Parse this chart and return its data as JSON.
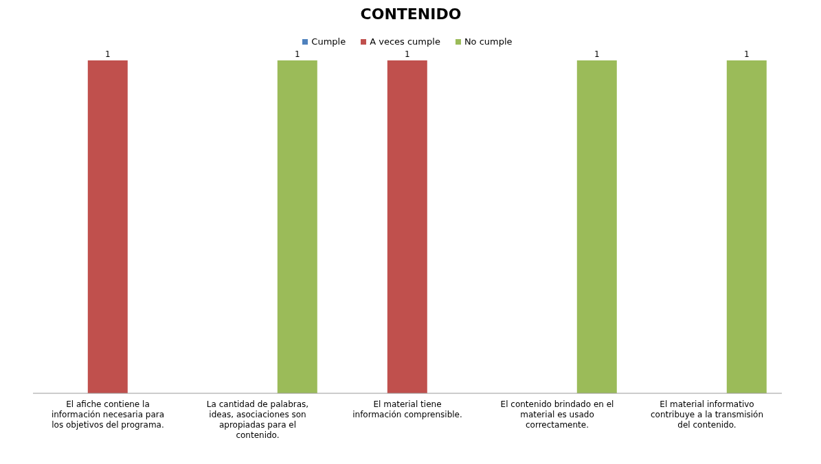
{
  "chart_data": {
    "type": "bar",
    "title": "CONTENIDO",
    "categories": [
      "El afiche contiene la información necesaria para los objetivos del programa.",
      "La cantidad de palabras, ideas, asociaciones son apropiadas para el contenido.",
      "El material tiene información comprensible.",
      "El contenido brindado en el material es usado correctamente.",
      "El material informativo contribuye a la transmisión del contenido."
    ],
    "series": [
      {
        "name": "Cumple",
        "color": "#4f81bd",
        "values": [
          null,
          null,
          null,
          null,
          null
        ]
      },
      {
        "name": "A veces cumple",
        "color": "#c0504d",
        "values": [
          1,
          null,
          1,
          null,
          null
        ]
      },
      {
        "name": "No cumple",
        "color": "#9bbb59",
        "values": [
          null,
          1,
          null,
          1,
          1
        ]
      }
    ],
    "data_labels": true,
    "legend": "top"
  }
}
